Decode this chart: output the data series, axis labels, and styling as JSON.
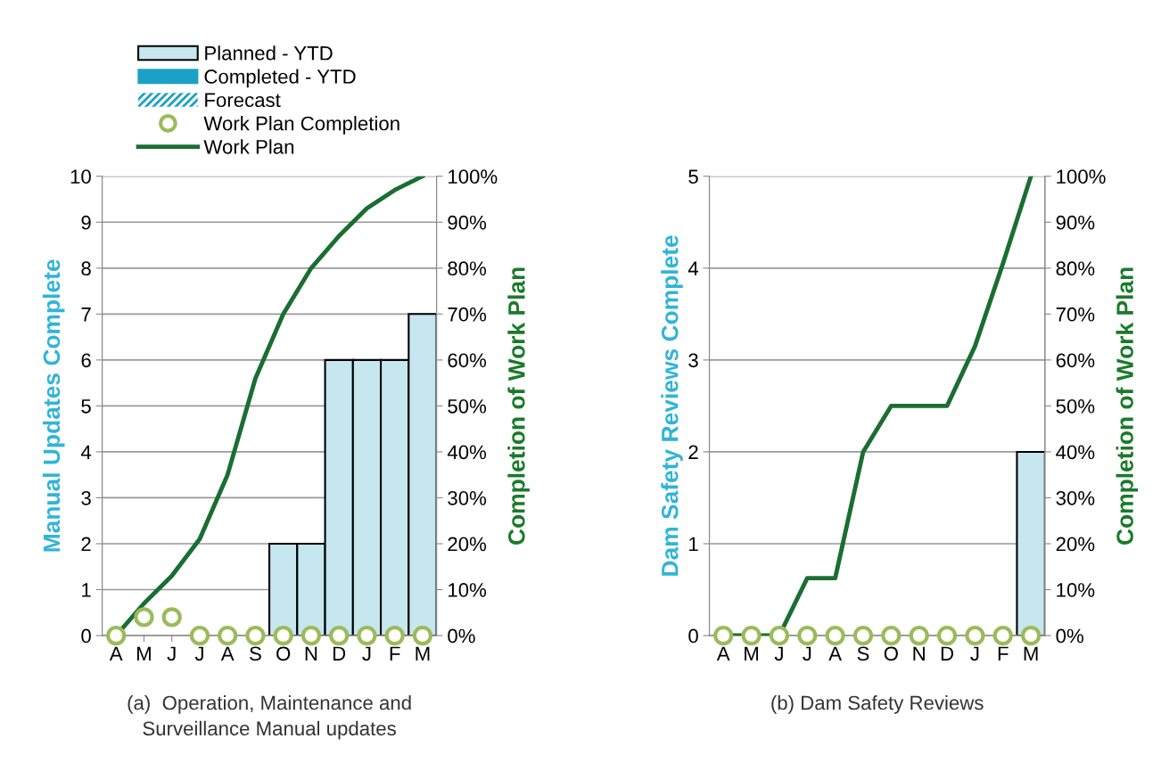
{
  "chart_data": [
    {
      "type": "bar",
      "categories": [
        "A",
        "M",
        "J",
        "J",
        "A",
        "S",
        "O",
        "N",
        "D",
        "J",
        "F",
        "M"
      ],
      "ylabel": "Manual Updates Complete",
      "y2label": "Completion of Work Plan",
      "ylim": [
        0,
        10
      ],
      "yticks": [
        0,
        1,
        2,
        3,
        4,
        5,
        6,
        7,
        8,
        9,
        10
      ],
      "y2lim": [
        0,
        100
      ],
      "y2ticks": [
        {
          "value": 0,
          "label": "0%"
        },
        {
          "value": 10,
          "label": "10%"
        },
        {
          "value": 20,
          "label": "20%"
        },
        {
          "value": 30,
          "label": "30%"
        },
        {
          "value": 40,
          "label": "40%"
        },
        {
          "value": 50,
          "label": "50%"
        },
        {
          "value": 60,
          "label": "60%"
        },
        {
          "value": 70,
          "label": "70%"
        },
        {
          "value": 80,
          "label": "80%"
        },
        {
          "value": 90,
          "label": "90%"
        },
        {
          "value": 100,
          "label": "100%"
        }
      ],
      "grid": "y",
      "legend": "top",
      "annotations": [
        "(a)  Operation, Maintenance and\nSurveillance Manual updates"
      ],
      "series": [
        {
          "name": "Planned - YTD",
          "color": "#c6e6f0",
          "values": [
            null,
            null,
            null,
            null,
            null,
            null,
            2,
            2,
            6,
            6,
            6,
            7
          ]
        },
        {
          "name": "Completed - YTD",
          "color": "#1ba1c5",
          "values": [
            null,
            null,
            null,
            null,
            null,
            null,
            null,
            null,
            null,
            null,
            null,
            null
          ]
        },
        {
          "name": "Forecast",
          "color": "#1ba1c5",
          "values": [
            null,
            null,
            null,
            null,
            null,
            null,
            null,
            null,
            null,
            null,
            null,
            null
          ]
        },
        {
          "name": "Work Plan Completion",
          "type": "scatter",
          "axis": "y2",
          "marker": "circle",
          "color": "#9bbb59",
          "values": [
            0,
            4,
            4,
            0,
            0,
            0,
            0,
            0,
            0,
            0,
            0,
            0
          ]
        },
        {
          "name": "Work Plan",
          "type": "line",
          "axis": "y2",
          "color": "#1a6e32",
          "values": [
            0,
            7,
            13,
            21,
            35,
            56,
            70,
            80,
            87,
            93,
            97,
            100
          ]
        }
      ]
    },
    {
      "type": "bar",
      "categories": [
        "A",
        "M",
        "J",
        "J",
        "A",
        "S",
        "O",
        "N",
        "D",
        "J",
        "F",
        "M"
      ],
      "ylabel": "Dam Safety Reviews Complete",
      "y2label": "Completion of Work Plan",
      "ylim": [
        0,
        5
      ],
      "yticks": [
        0,
        1,
        2,
        3,
        4,
        5
      ],
      "y2lim": [
        0,
        100
      ],
      "y2ticks": [
        {
          "value": 0,
          "label": "0%"
        },
        {
          "value": 10,
          "label": "10%"
        },
        {
          "value": 20,
          "label": "20%"
        },
        {
          "value": 30,
          "label": "30%"
        },
        {
          "value": 40,
          "label": "40%"
        },
        {
          "value": 50,
          "label": "50%"
        },
        {
          "value": 60,
          "label": "60%"
        },
        {
          "value": 70,
          "label": "70%"
        },
        {
          "value": 80,
          "label": "80%"
        },
        {
          "value": 90,
          "label": "90%"
        },
        {
          "value": 100,
          "label": "100%"
        }
      ],
      "grid": "y",
      "annotations": [
        "(b) Dam Safety Reviews"
      ],
      "series": [
        {
          "color": "#c6e6f0",
          "values": [
            null,
            null,
            null,
            null,
            null,
            null,
            null,
            null,
            null,
            null,
            null,
            2
          ]
        },
        {
          "type": "scatter",
          "axis": "y2",
          "marker": "circle",
          "color": "#9bbb59",
          "values": [
            0,
            0,
            0,
            0,
            0,
            0,
            0,
            0,
            0,
            0,
            0,
            0
          ]
        },
        {
          "type": "line",
          "axis": "y2",
          "color": "#1a6e32",
          "values": [
            0,
            0,
            0,
            12.5,
            12.5,
            40,
            50,
            50,
            50,
            63,
            81,
            100
          ]
        }
      ]
    }
  ]
}
